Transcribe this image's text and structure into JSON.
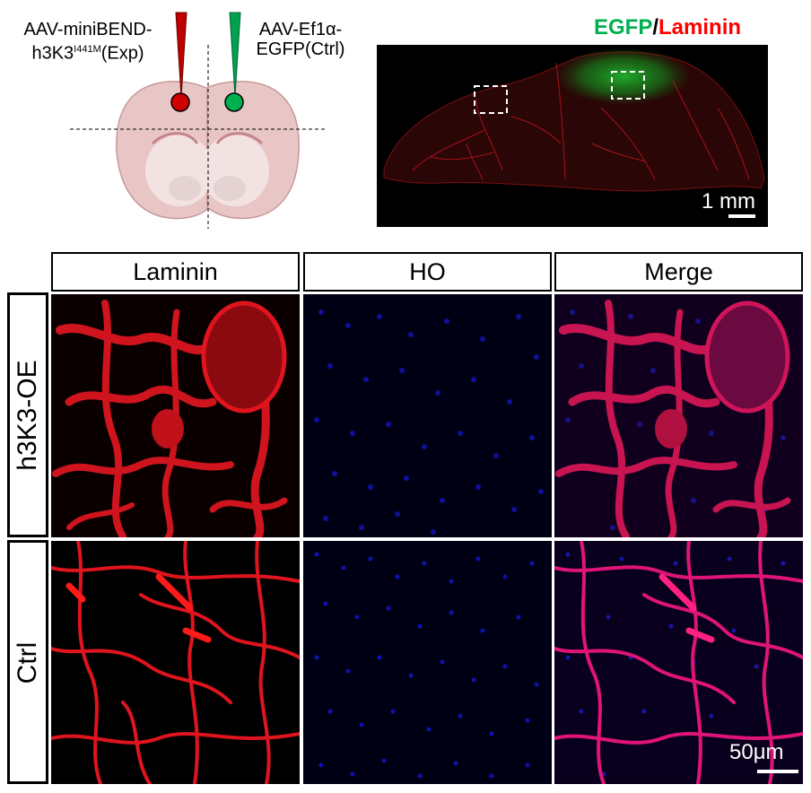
{
  "schematic": {
    "left_label_line1": "AAV-miniBEND-",
    "left_label_line2_prefix": "h3K3",
    "left_label_sup": "I441M",
    "left_label_line2_suffix": "(Exp)",
    "right_label_line1": "AAV-Ef1α-",
    "right_label_line2": "EGFP(Ctrl)"
  },
  "overview": {
    "title_green": "EGFP",
    "title_sep": "/",
    "title_red": "Laminin",
    "scale_text": "1 mm"
  },
  "columns": [
    "Laminin",
    "HO",
    "Merge"
  ],
  "rows": [
    "h3K3-OE",
    "Ctrl"
  ],
  "panel_scale_text": "50μm",
  "colors": {
    "green": "#00b050",
    "red": "#ff0000",
    "laminin": "#e0141e",
    "nuclei": "#1a1aff",
    "brain": "#e8c4c4"
  }
}
